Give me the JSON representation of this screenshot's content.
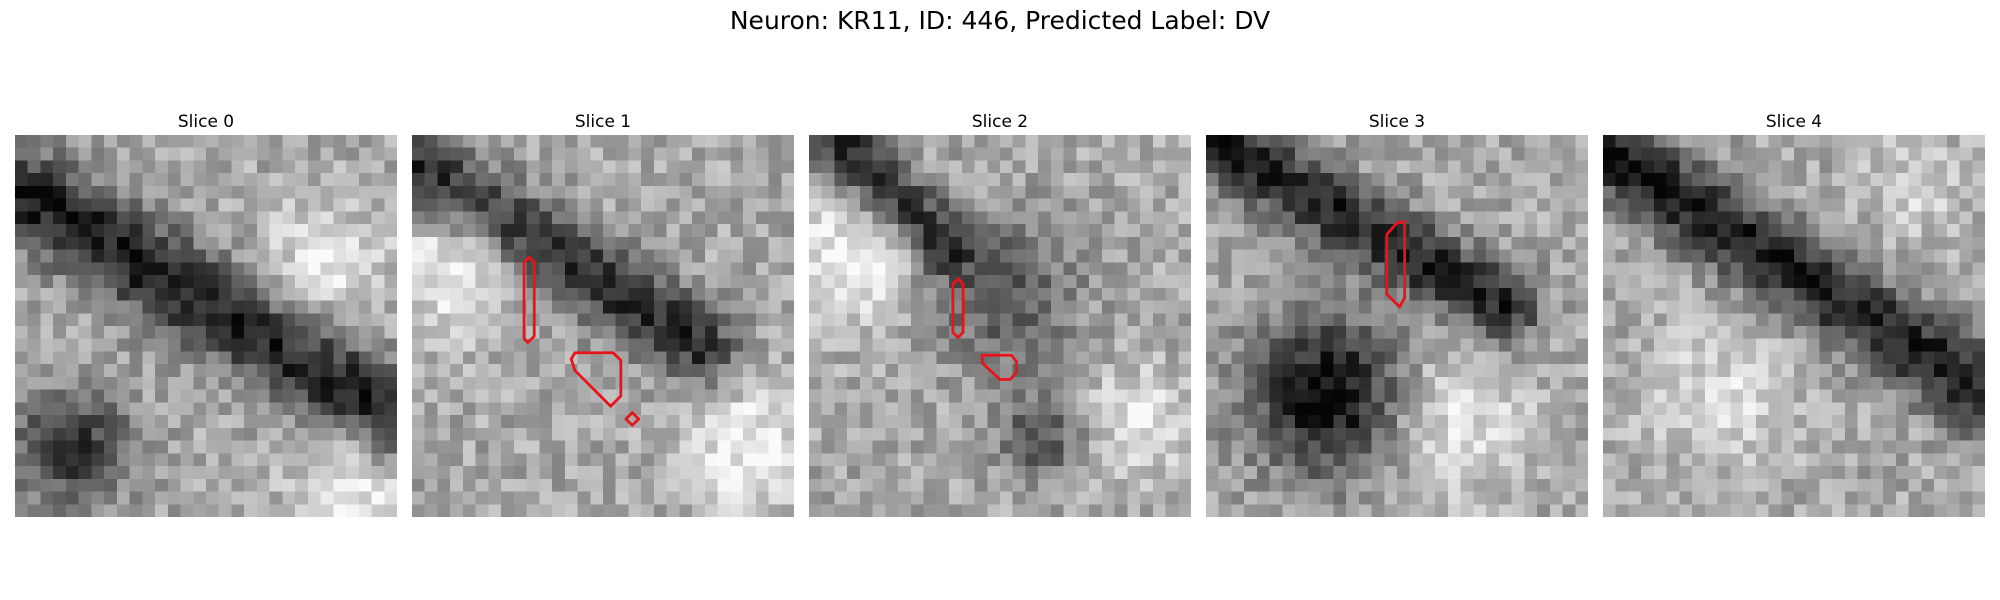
{
  "figure": {
    "title": "Neuron: KR11, ID: 446, Predicted Label: DV"
  },
  "overlay_color": "#e8141a",
  "panels": [
    {
      "title": "Slice 0",
      "grid_seed": 11,
      "features": [
        {
          "kind": "band",
          "x1": 0,
          "y1": 4,
          "x2": 30,
          "y2": 22,
          "w": 2.6,
          "s": 0.55
        },
        {
          "kind": "blob",
          "cx": 4,
          "cy": 24,
          "r": 3.2,
          "s": 0.5
        },
        {
          "kind": "bright",
          "cx": 24,
          "cy": 10,
          "r": 3.5,
          "s": 0.25
        },
        {
          "kind": "bright",
          "cx": 26,
          "cy": 27,
          "r": 3.2,
          "s": 0.3
        }
      ],
      "contours": []
    },
    {
      "title": "Slice 1",
      "grid_seed": 23,
      "features": [
        {
          "kind": "band",
          "x1": 0,
          "y1": 2,
          "x2": 22,
          "y2": 16,
          "w": 2.2,
          "s": 0.5
        },
        {
          "kind": "bright",
          "cx": 3,
          "cy": 10,
          "r": 3.5,
          "s": 0.3
        },
        {
          "kind": "bright",
          "cx": 26,
          "cy": 24,
          "r": 3.5,
          "s": 0.3
        }
      ],
      "contours": [
        [
          [
            9.2,
            9.6
          ],
          [
            9.6,
            10
          ],
          [
            9.6,
            15.8
          ],
          [
            9.1,
            16.3
          ],
          [
            8.8,
            16
          ],
          [
            8.8,
            10
          ]
        ],
        [
          [
            12.8,
            17.1
          ],
          [
            15.8,
            17.1
          ],
          [
            16.4,
            17.7
          ],
          [
            16.4,
            20.5
          ],
          [
            15.6,
            21.3
          ],
          [
            12.8,
            18.5
          ],
          [
            12.5,
            17.6
          ]
        ],
        [
          [
            17.3,
            21.8
          ],
          [
            17.8,
            22.3
          ],
          [
            17.3,
            22.8
          ],
          [
            16.8,
            22.3
          ]
        ]
      ]
    },
    {
      "title": "Slice 2",
      "grid_seed": 37,
      "features": [
        {
          "kind": "band",
          "x1": 2,
          "y1": 0,
          "x2": 10,
          "y2": 8,
          "w": 1.8,
          "s": 0.5
        },
        {
          "kind": "blob",
          "cx": 15,
          "cy": 12,
          "r": 3.8,
          "s": 0.35
        },
        {
          "kind": "blob",
          "cx": 18,
          "cy": 23,
          "r": 2.6,
          "s": 0.35
        },
        {
          "kind": "bright",
          "cx": 3,
          "cy": 9,
          "r": 3.5,
          "s": 0.3
        },
        {
          "kind": "bright",
          "cx": 25,
          "cy": 22,
          "r": 3,
          "s": 0.25
        }
      ],
      "contours": [
        [
          [
            11.7,
            11.3
          ],
          [
            12.1,
            11.7
          ],
          [
            12.1,
            15.5
          ],
          [
            11.7,
            15.9
          ],
          [
            11.3,
            15.5
          ],
          [
            11.3,
            11.7
          ]
        ],
        [
          [
            13.6,
            17.3
          ],
          [
            15.9,
            17.3
          ],
          [
            16.3,
            17.8
          ],
          [
            16.3,
            18.6
          ],
          [
            15.8,
            19.2
          ],
          [
            15,
            19.2
          ],
          [
            13.6,
            17.9
          ]
        ]
      ]
    },
    {
      "title": "Slice 3",
      "grid_seed": 53,
      "features": [
        {
          "kind": "band",
          "x1": 0,
          "y1": 0,
          "x2": 23,
          "y2": 13,
          "w": 2.0,
          "s": 0.55
        },
        {
          "kind": "blob",
          "cx": 9,
          "cy": 20,
          "r": 4.3,
          "s": 0.65
        },
        {
          "kind": "bright",
          "cx": 19,
          "cy": 22,
          "r": 4,
          "s": 0.25
        }
      ],
      "contours": [
        [
          [
            15.6,
            6.8
          ],
          [
            15.6,
            12.8
          ],
          [
            15.2,
            13.5
          ],
          [
            14.2,
            12.5
          ],
          [
            14.2,
            7.8
          ],
          [
            15.0,
            6.9
          ]
        ]
      ]
    },
    {
      "title": "Slice 4",
      "grid_seed": 71,
      "features": [
        {
          "kind": "band",
          "x1": 0,
          "y1": 1,
          "x2": 30,
          "y2": 20,
          "w": 2.3,
          "s": 0.55
        },
        {
          "kind": "bright",
          "cx": 9,
          "cy": 20,
          "r": 4,
          "s": 0.2
        },
        {
          "kind": "bright",
          "cx": 24,
          "cy": 4,
          "r": 3,
          "s": 0.15
        }
      ],
      "contours": []
    }
  ]
}
